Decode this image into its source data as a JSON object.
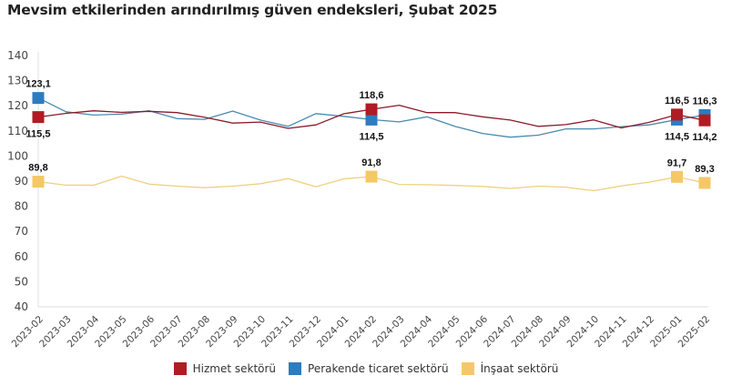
{
  "title": "Mevsim etkilerinden arındırılmış güven endeksleri, Şubat 2025",
  "chart_data": {
    "type": "line",
    "title": "Mevsim etkilerinden arındırılmış güven endeksleri, Şubat 2025",
    "xlabel": "",
    "ylabel": "",
    "ylim": [
      40,
      140
    ],
    "yticks": [
      140,
      130,
      120,
      110,
      100,
      90,
      80,
      70,
      60,
      50,
      40
    ],
    "grid": false,
    "legend_position": "bottom",
    "categories": [
      "2023-02",
      "2023-03",
      "2023-04",
      "2023-05",
      "2023-06",
      "2023-07",
      "2023-08",
      "2023-09",
      "2023-10",
      "2023-11",
      "2023-12",
      "2024-01",
      "2024-02",
      "2024-03",
      "2024-04",
      "2024-05",
      "2024-06",
      "2024-07",
      "2024-08",
      "2024-09",
      "2024-10",
      "2024-11",
      "2024-12",
      "2025-01",
      "2025-02"
    ],
    "series": [
      {
        "name": "Hizmet sektörü",
        "color": "#b01c24",
        "line_color": "#8b1a2a",
        "values": [
          115.5,
          117.0,
          118.0,
          117.4,
          117.8,
          117.3,
          115.4,
          113.1,
          113.5,
          111.0,
          112.4,
          116.8,
          118.6,
          120.2,
          117.3,
          117.3,
          115.6,
          114.3,
          111.8,
          112.5,
          114.4,
          111.2,
          113.4,
          116.5,
          114.2
        ],
        "highlighted": [
          {
            "index": 0,
            "label": "115,5",
            "position": "below"
          },
          {
            "index": 12,
            "label": "118,6",
            "position": "above"
          },
          {
            "index": 23,
            "label": "116,5",
            "position": "above"
          },
          {
            "index": 24,
            "label": "114,2",
            "position": "below"
          }
        ]
      },
      {
        "name": "Perakende ticaret sektörü",
        "color": "#2f7bbf",
        "line_color": "#4a8ab0",
        "values": [
          123.1,
          117.6,
          116.3,
          116.7,
          118.0,
          114.9,
          114.6,
          117.9,
          114.3,
          111.8,
          116.9,
          115.8,
          114.5,
          113.6,
          115.6,
          111.8,
          109.0,
          107.5,
          108.3,
          110.8,
          110.8,
          111.7,
          112.4,
          114.5,
          116.3
        ],
        "highlighted": [
          {
            "index": 0,
            "label": "123,1",
            "position": "above"
          },
          {
            "index": 12,
            "label": "114,5",
            "position": "below"
          },
          {
            "index": 23,
            "label": "114,5",
            "position": "below"
          },
          {
            "index": 24,
            "label": "116,3",
            "position": "above"
          }
        ]
      },
      {
        "name": "İnşaat sektörü",
        "color": "#f5c866",
        "line_color": "#f0d080",
        "values": [
          89.8,
          88.4,
          88.4,
          92.0,
          88.8,
          88.0,
          87.4,
          88.0,
          89.0,
          91.0,
          87.8,
          90.9,
          91.8,
          88.7,
          88.6,
          88.3,
          87.9,
          87.1,
          88.0,
          87.6,
          86.2,
          88.1,
          89.6,
          91.7,
          89.3
        ],
        "highlighted": [
          {
            "index": 0,
            "label": "89,8",
            "position": "above"
          },
          {
            "index": 12,
            "label": "91,8",
            "position": "above"
          },
          {
            "index": 23,
            "label": "91,7",
            "position": "above"
          },
          {
            "index": 24,
            "label": "89,3",
            "position": "above"
          }
        ]
      }
    ]
  }
}
